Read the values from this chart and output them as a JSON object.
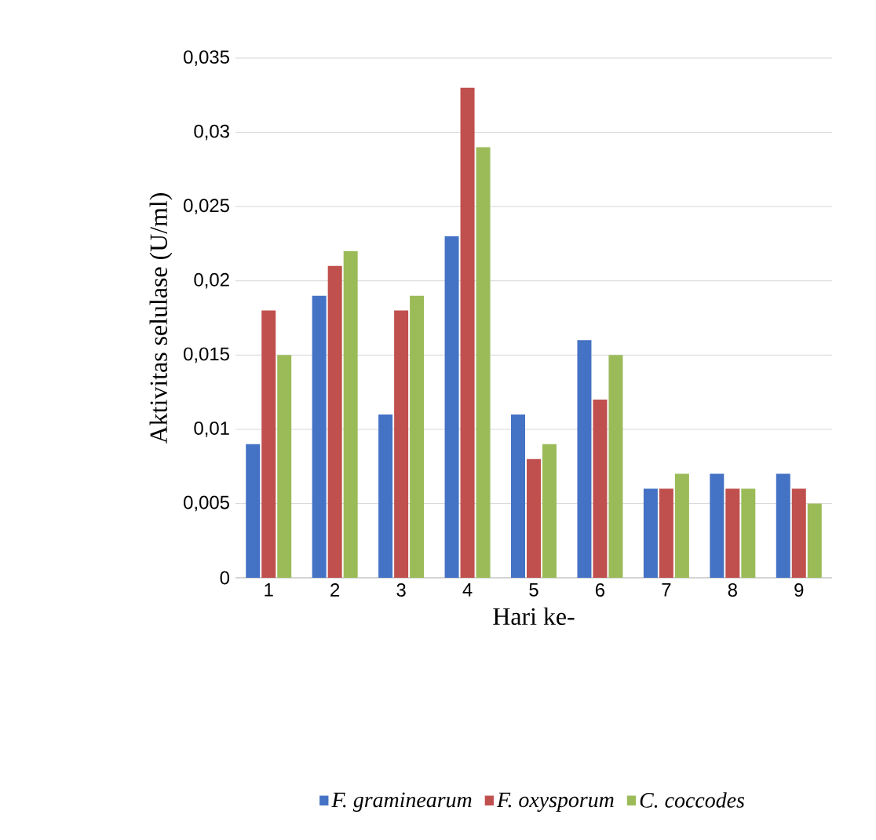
{
  "chart_data": {
    "type": "bar",
    "xlabel": "Hari ke-",
    "ylabel": "Aktivitas selulase (U/ml)",
    "categories": [
      "1",
      "2",
      "3",
      "4",
      "5",
      "6",
      "7",
      "8",
      "9"
    ],
    "series": [
      {
        "name": "F. graminearum",
        "color": "#4472c4",
        "values": [
          0.009,
          0.019,
          0.011,
          0.023,
          0.011,
          0.016,
          0.006,
          0.007,
          0.007
        ]
      },
      {
        "name": "F. oxysporum",
        "color": "#c0504d",
        "values": [
          0.018,
          0.021,
          0.018,
          0.033,
          0.008,
          0.012,
          0.006,
          0.006,
          0.006
        ]
      },
      {
        "name": "C. coccodes",
        "color": "#9bbb59",
        "values": [
          0.015,
          0.022,
          0.019,
          0.029,
          0.009,
          0.015,
          0.007,
          0.006,
          0.005
        ]
      }
    ],
    "ylim": [
      0,
      0.035
    ],
    "yticks": [
      {
        "value": 0,
        "label": "0"
      },
      {
        "value": 0.005,
        "label": "0,005"
      },
      {
        "value": 0.01,
        "label": "0,01"
      },
      {
        "value": 0.015,
        "label": "0,015"
      },
      {
        "value": 0.02,
        "label": "0,02"
      },
      {
        "value": 0.025,
        "label": "0,025"
      },
      {
        "value": 0.03,
        "label": "0,03"
      },
      {
        "value": 0.035,
        "label": "0,035"
      }
    ],
    "grid": "y",
    "legend": "bottom"
  }
}
